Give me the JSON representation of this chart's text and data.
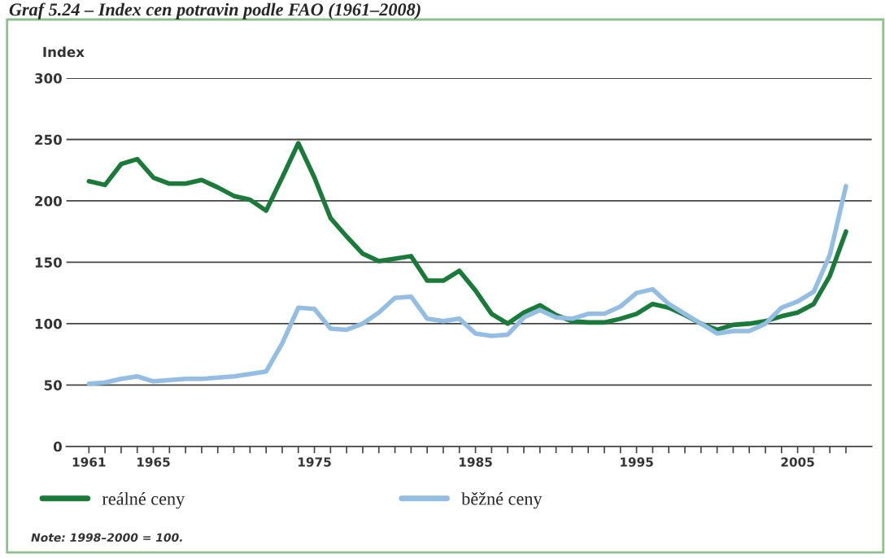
{
  "chart_data": {
    "type": "line",
    "title": "Graf 5.24 – Index cen potravin podle FAO (1961–2008)",
    "ylabel": "Index",
    "x": [
      1961,
      1962,
      1963,
      1964,
      1965,
      1966,
      1967,
      1968,
      1969,
      1970,
      1971,
      1972,
      1973,
      1974,
      1975,
      1976,
      1977,
      1978,
      1979,
      1980,
      1981,
      1982,
      1983,
      1984,
      1985,
      1986,
      1987,
      1988,
      1989,
      1990,
      1991,
      1992,
      1993,
      1994,
      1995,
      1996,
      1997,
      1998,
      1999,
      2000,
      2001,
      2002,
      2003,
      2004,
      2005,
      2006,
      2007,
      2008
    ],
    "series": [
      {
        "name": "reálné ceny",
        "color": "#1a7a3a",
        "values": [
          216,
          213,
          230,
          234,
          219,
          214,
          214,
          217,
          211,
          204,
          201,
          192,
          219,
          247,
          219,
          186,
          171,
          157,
          151,
          153,
          155,
          135,
          135,
          143,
          127,
          108,
          100,
          109,
          115,
          107,
          102,
          101,
          101,
          104,
          108,
          116,
          113,
          107,
          100,
          95,
          99,
          100,
          102,
          106,
          109,
          116,
          139,
          175
        ]
      },
      {
        "name": "běžné ceny",
        "color": "#94bde3",
        "values": [
          51,
          52,
          55,
          57,
          53,
          54,
          55,
          55,
          56,
          57,
          59,
          61,
          84,
          113,
          112,
          96,
          95,
          100,
          109,
          121,
          122,
          104,
          102,
          104,
          92,
          90,
          91,
          105,
          111,
          105,
          104,
          108,
          108,
          114,
          125,
          128,
          116,
          108,
          100,
          92,
          94,
          94,
          100,
          113,
          118,
          126,
          156,
          212
        ]
      }
    ],
    "xlim": [
      1959.6,
      2009.6
    ],
    "xticks": [
      1961,
      {
        "value": 1962,
        "label": null
      },
      {
        "value": 1963,
        "label": null
      },
      {
        "value": 1964,
        "label": null
      },
      1965,
      {
        "value": 1966,
        "label": null
      },
      {
        "value": 1967,
        "label": null
      },
      {
        "value": 1968,
        "label": null
      },
      {
        "value": 1969,
        "label": null
      },
      {
        "value": 1970,
        "label": null
      },
      {
        "value": 1971,
        "label": null
      },
      {
        "value": 1972,
        "label": null
      },
      {
        "value": 1973,
        "label": null
      },
      {
        "value": 1974,
        "label": null
      },
      1975,
      {
        "value": 1976,
        "label": null
      },
      {
        "value": 1977,
        "label": null
      },
      {
        "value": 1978,
        "label": null
      },
      {
        "value": 1979,
        "label": null
      },
      {
        "value": 1980,
        "label": null
      },
      {
        "value": 1981,
        "label": null
      },
      {
        "value": 1982,
        "label": null
      },
      {
        "value": 1983,
        "label": null
      },
      {
        "value": 1984,
        "label": null
      },
      1985,
      {
        "value": 1986,
        "label": null
      },
      {
        "value": 1987,
        "label": null
      },
      {
        "value": 1988,
        "label": null
      },
      {
        "value": 1989,
        "label": null
      },
      {
        "value": 1990,
        "label": null
      },
      {
        "value": 1991,
        "label": null
      },
      {
        "value": 1992,
        "label": null
      },
      {
        "value": 1993,
        "label": null
      },
      {
        "value": 1994,
        "label": null
      },
      1995,
      {
        "value": 1996,
        "label": null
      },
      {
        "value": 1997,
        "label": null
      },
      {
        "value": 1998,
        "label": null
      },
      {
        "value": 1999,
        "label": null
      },
      {
        "value": 2000,
        "label": null
      },
      {
        "value": 2001,
        "label": null
      },
      {
        "value": 2002,
        "label": null
      },
      {
        "value": 2003,
        "label": null
      },
      {
        "value": 2004,
        "label": null
      },
      2005,
      {
        "value": 2006,
        "label": null
      },
      {
        "value": 2007,
        "label": null
      },
      {
        "value": 2008,
        "label": null
      }
    ],
    "ylim": [
      0,
      300
    ],
    "yticks": [
      0,
      50,
      100,
      150,
      200,
      250,
      300
    ],
    "grid": "y",
    "legend": "bottom",
    "line_style": "solid",
    "marker": "none",
    "annotations": [
      "Note: 1998–2000 = 100."
    ]
  }
}
